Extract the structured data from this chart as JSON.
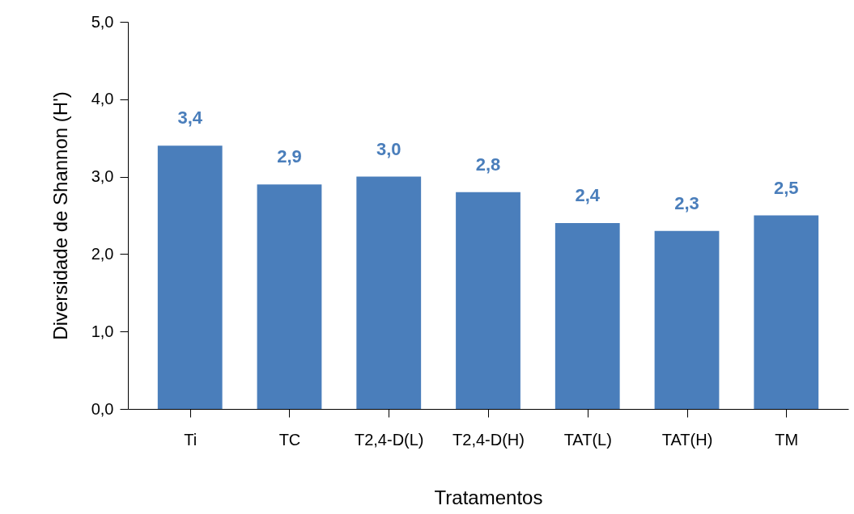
{
  "chart_data": {
    "type": "bar",
    "xlabel": "Tratamentos",
    "ylabel": "Diversidade de Shannon (H')",
    "categories": [
      "Ti",
      "TC",
      "T2,4-D(L)",
      "T2,4-D(H)",
      "TAT(L)",
      "TAT(H)",
      "TM"
    ],
    "values": [
      3.4,
      2.9,
      3.0,
      2.8,
      2.4,
      2.3,
      2.5
    ],
    "value_labels": [
      "3,4",
      "2,9",
      "3,0",
      "2,8",
      "2,4",
      "2,3",
      "2,5"
    ],
    "color": "#4a7ebb",
    "ylim": [
      0,
      5
    ],
    "yticks": [
      {
        "value": 0,
        "label": "0,0"
      },
      {
        "value": 1,
        "label": "1,0"
      },
      {
        "value": 2,
        "label": "2,0"
      },
      {
        "value": 3,
        "label": "3,0"
      },
      {
        "value": 4,
        "label": "4,0"
      },
      {
        "value": 5,
        "label": "5,0"
      }
    ],
    "grid": false
  }
}
